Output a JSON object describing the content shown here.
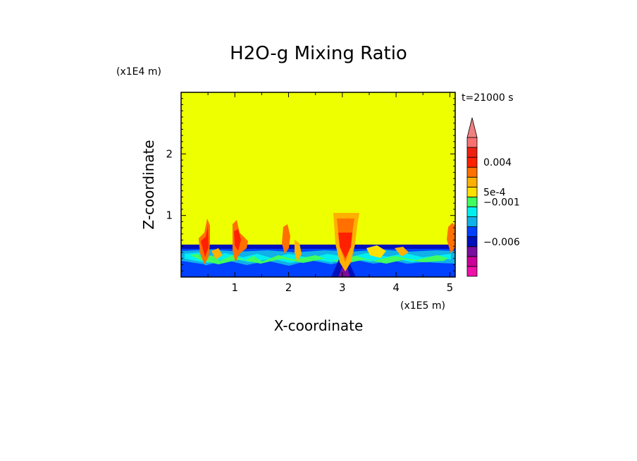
{
  "chart_data": {
    "type": "heatmap",
    "title": "H2O-g Mixing Ratio",
    "xlabel": "X-coordinate",
    "ylabel": "Z-coordinate",
    "x_multiplier": "(x1E5 m)",
    "y_multiplier": "(x1E4 m)",
    "time_label": "t=21000 s",
    "xlim": [
      0,
      5.1
    ],
    "ylim": [
      0,
      3.0
    ],
    "xticks": [
      1,
      2,
      3,
      4,
      5
    ],
    "yticks": [
      1,
      2
    ],
    "background_color": "#eeff00",
    "colorbar": {
      "extend": "max",
      "colors": [
        "#ee10a8",
        "#cc0099",
        "#7a0e9e",
        "#0010bb",
        "#0040ff",
        "#10b0e8",
        "#00f0f0",
        "#40ff60",
        "#ffe000",
        "#ffb000",
        "#ff7000",
        "#ff2000",
        "#ee2010",
        "#f87070"
      ],
      "overflow_color": "#f08080",
      "labels": [
        {
          "text": "0.004",
          "at": 0.004
        },
        {
          "text": "5e-4",
          "at": 0.0005
        },
        {
          "text": "−0.001",
          "at": -0.001
        },
        {
          "text": "−0.006",
          "at": -0.006
        }
      ]
    }
  }
}
